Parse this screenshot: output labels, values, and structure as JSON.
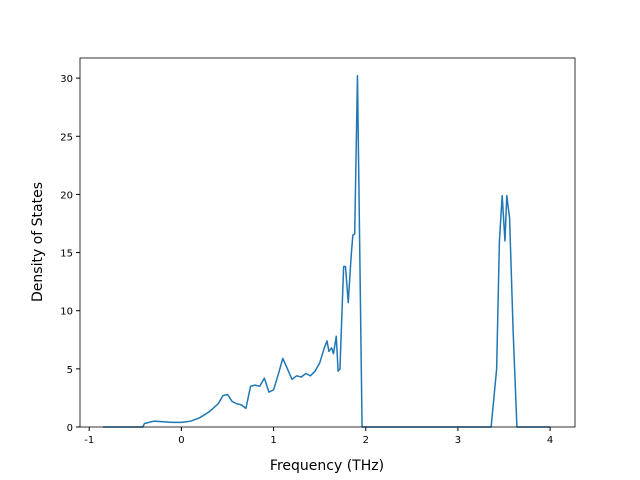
{
  "chart_data": {
    "type": "line",
    "xlabel": "Frequency (THz)",
    "ylabel": "Density of States",
    "x": [
      -0.85,
      -0.42,
      -0.4,
      -0.3,
      -0.2,
      -0.1,
      0,
      0.1,
      0.2,
      0.3,
      0.4,
      0.45,
      0.5,
      0.55,
      0.6,
      0.65,
      0.7,
      0.75,
      0.8,
      0.85,
      0.9,
      0.95,
      1.0,
      1.05,
      1.1,
      1.15,
      1.2,
      1.25,
      1.3,
      1.35,
      1.4,
      1.45,
      1.5,
      1.55,
      1.58,
      1.6,
      1.63,
      1.65,
      1.68,
      1.7,
      1.72,
      1.76,
      1.78,
      1.81,
      1.84,
      1.86,
      1.88,
      1.91,
      1.96,
      3.36,
      3.42,
      3.45,
      3.48,
      3.51,
      3.53,
      3.56,
      3.6,
      3.64,
      4.0
    ],
    "series": [
      {
        "name": "DOS",
        "color": "#1f77b4",
        "values": [
          0,
          0,
          0.3,
          0.5,
          0.45,
          0.4,
          0.4,
          0.5,
          0.8,
          1.3,
          2.0,
          2.7,
          2.8,
          2.2,
          2.0,
          1.9,
          1.6,
          3.5,
          3.6,
          3.5,
          4.2,
          3.0,
          3.2,
          4.5,
          5.9,
          5.0,
          4.1,
          4.4,
          4.3,
          4.6,
          4.4,
          4.8,
          5.5,
          6.8,
          7.4,
          6.5,
          6.8,
          6.3,
          7.8,
          4.8,
          5.0,
          13.8,
          13.8,
          10.7,
          14.5,
          16.5,
          16.6,
          30.2,
          0,
          0,
          5.0,
          16.0,
          19.9,
          16.0,
          19.9,
          18.0,
          8.0,
          0,
          0
        ]
      }
    ],
    "xlim": [
      -1.1,
      4.27
    ],
    "ylim": [
      0,
      31.73
    ],
    "xticks": [
      -1,
      0,
      1,
      2,
      3,
      4
    ],
    "yticks": [
      0,
      5,
      10,
      15,
      20,
      25,
      30
    ]
  }
}
